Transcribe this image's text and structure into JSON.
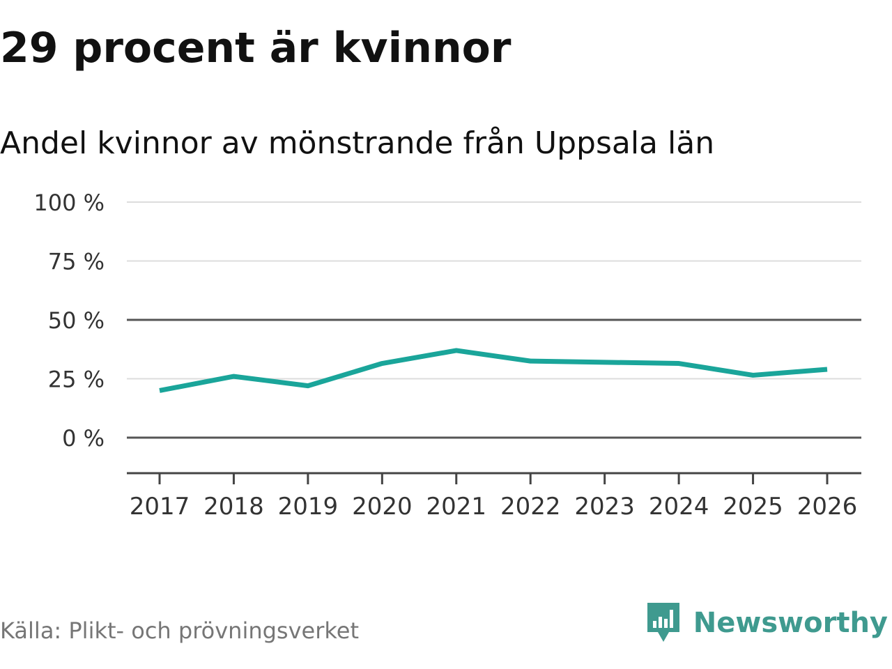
{
  "header": {
    "title": "29 procent är kvinnor",
    "subtitle": "Andel kvinnor av mönstrande från Uppsala län"
  },
  "footer": {
    "source": "Källa: Plikt- och prövningsverket",
    "brand": "Newsworthy"
  },
  "colors": {
    "line": "#1aa59a",
    "brand": "#3f9a8f",
    "grid": "#dddddd",
    "axis": "#444444"
  },
  "chart_data": {
    "type": "line",
    "title": "29 procent är kvinnor",
    "subtitle": "Andel kvinnor av mönstrande från Uppsala län",
    "xlabel": "",
    "ylabel": "",
    "categories": [
      "2017",
      "2018",
      "2019",
      "2020",
      "2021",
      "2022",
      "2023",
      "2024",
      "2025",
      "2026"
    ],
    "series": [
      {
        "name": "Andel kvinnor",
        "values": [
          20,
          26,
          22,
          31.5,
          37,
          32.5,
          32,
          31.5,
          26.5,
          29
        ]
      }
    ],
    "ylim": [
      -15,
      100
    ],
    "yticks": [
      0,
      25,
      50,
      75,
      100
    ],
    "ytick_labels": [
      "0 %",
      "25 %",
      "50 %",
      "75 %",
      "100 %"
    ],
    "emphasized_gridlines": [
      0,
      50
    ],
    "grid": true,
    "legend": "none"
  }
}
